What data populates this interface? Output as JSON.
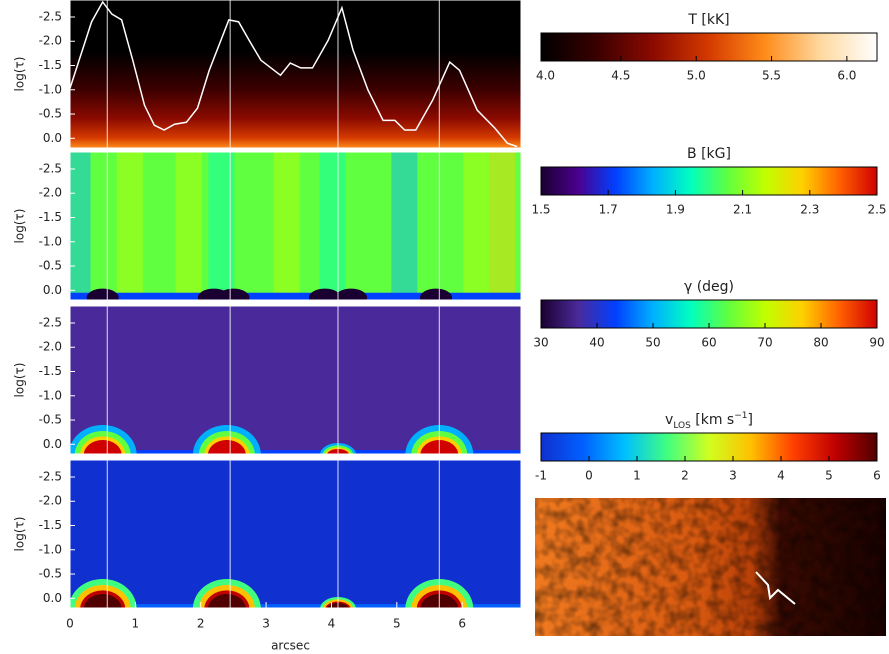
{
  "chart_data": [
    {
      "type": "heatmap",
      "ylabel": "log(τ)",
      "ylim": [
        0.2,
        -2.85
      ],
      "yticks": [
        -2.5,
        {
          "value": -2.0,
          "label": "-2.0"
        },
        -1.5,
        {
          "value": -1.0,
          "label": "-1.0"
        },
        -0.5,
        {
          "value": 0.0,
          "label": "0.0"
        }
      ],
      "xlim": [
        0,
        6.9
      ],
      "vlines": [
        0.57,
        2.45,
        4.1,
        5.65
      ],
      "colormap": 0,
      "series": [
        {
          "color": "#ffffff",
          "x": [
            0,
            0.33,
            0.5,
            0.64,
            0.79,
            0.96,
            1.14,
            1.29,
            1.44,
            1.6,
            1.78,
            1.95,
            2.13,
            2.43,
            2.58,
            2.74,
            2.92,
            3.22,
            3.37,
            3.53,
            3.71,
            3.95,
            4.16,
            4.33,
            4.56,
            4.79,
            4.97,
            5.12,
            5.29,
            5.55,
            5.81,
            5.96,
            6.23,
            6.5,
            6.69,
            6.84
          ],
          "values": [
            -1.03,
            -2.4,
            -2.81,
            -2.56,
            -2.44,
            -1.61,
            -0.68,
            -0.27,
            -0.17,
            -0.29,
            -0.33,
            -0.62,
            -1.4,
            -2.44,
            -2.4,
            -2.02,
            -1.61,
            -1.3,
            -1.55,
            -1.45,
            -1.45,
            -2.02,
            -2.69,
            -1.82,
            -0.99,
            -0.37,
            -0.37,
            -0.17,
            -0.17,
            -0.79,
            -1.57,
            -1.4,
            -0.58,
            -0.21,
            0.1,
            0.17
          ]
        }
      ]
    },
    {
      "type": "heatmap",
      "ylabel": "log(τ)",
      "ylim": [
        0.2,
        -2.85
      ],
      "yticks": [
        -2.5,
        {
          "value": -2.0,
          "label": "-2.0"
        },
        -1.5,
        {
          "value": -1.0,
          "label": "-1.0"
        },
        -0.5,
        {
          "value": 0.0,
          "label": "0.0"
        }
      ],
      "xlim": [
        0,
        6.9
      ],
      "vlines": [
        0.57,
        2.45,
        4.1,
        5.65
      ],
      "colormap": 1
    },
    {
      "type": "heatmap",
      "ylabel": "log(τ)",
      "ylim": [
        0.2,
        -2.85
      ],
      "yticks": [
        -2.5,
        {
          "value": -2.0,
          "label": "-2.0"
        },
        -1.5,
        {
          "value": -1.0,
          "label": "-1.0"
        },
        -0.5,
        {
          "value": 0.0,
          "label": "0.0"
        }
      ],
      "xlim": [
        0,
        6.9
      ],
      "vlines": [
        0.57,
        2.45,
        4.1,
        5.65
      ],
      "colormap": 2
    },
    {
      "type": "heatmap",
      "ylabel": "log(τ)",
      "ylim": [
        0.2,
        -2.85
      ],
      "yticks": [
        -2.5,
        {
          "value": -2.0,
          "label": "-2.0"
        },
        -1.5,
        {
          "value": -1.0,
          "label": "-1.0"
        },
        -0.5,
        {
          "value": 0.0,
          "label": "0.0"
        }
      ],
      "xlim": [
        0,
        6.9
      ],
      "xticks": [
        0,
        1,
        2,
        3,
        4,
        5,
        6
      ],
      "xlabel": "arcsec",
      "vlines": [
        0.57,
        2.45,
        4.1,
        5.65
      ],
      "colormap": 3
    },
    {
      "type": "colorbar",
      "title": [
        "T [kK]"
      ],
      "lim": [
        3.97,
        6.2
      ],
      "ticks": [
        {
          "value": 4.0,
          "label": "4.0"
        },
        4.5,
        {
          "value": 5.0,
          "label": "5.0"
        },
        5.5,
        {
          "value": 6.0,
          "label": "6.0"
        }
      ],
      "colors": [
        "#000000",
        "#3a0000",
        "#8b0a00",
        "#d43a00",
        "#ff8c1a",
        "#ffd9a0",
        "#ffffff"
      ]
    },
    {
      "type": "colorbar",
      "title": [
        "B [kG]"
      ],
      "lim": [
        1.5,
        2.5
      ],
      "ticks": [
        1.5,
        1.7,
        1.9,
        2.1,
        2.3,
        2.5
      ],
      "colors": [
        "#1a0030",
        "#4b0090",
        "#0040ff",
        "#00b0ff",
        "#00ffc0",
        "#60ff40",
        "#c0ff00",
        "#ffd000",
        "#ff6000",
        "#d00000"
      ]
    },
    {
      "type": "colorbar",
      "title": [
        "γ (deg)"
      ],
      "lim": [
        30,
        90
      ],
      "ticks": [
        30,
        40,
        50,
        60,
        70,
        80,
        90
      ],
      "colors": [
        "#1a0030",
        "#4a2a9a",
        "#0040ff",
        "#00b0ff",
        "#00ffc0",
        "#60ff40",
        "#c0ff00",
        "#ffd000",
        "#ff6000",
        "#d00000"
      ]
    },
    {
      "type": "colorbar",
      "title": [
        "v",
        "LOS",
        " [km s",
        "−1",
        "]"
      ],
      "lim": [
        -1,
        6
      ],
      "ticks": [
        -1,
        0,
        1,
        2,
        3,
        4,
        5,
        6
      ],
      "colors": [
        "#1030d0",
        "#0060ff",
        "#00c0ff",
        "#40ff80",
        "#d0ff20",
        "#ffc000",
        "#ff4000",
        "#c00000",
        "#500000"
      ]
    }
  ]
}
